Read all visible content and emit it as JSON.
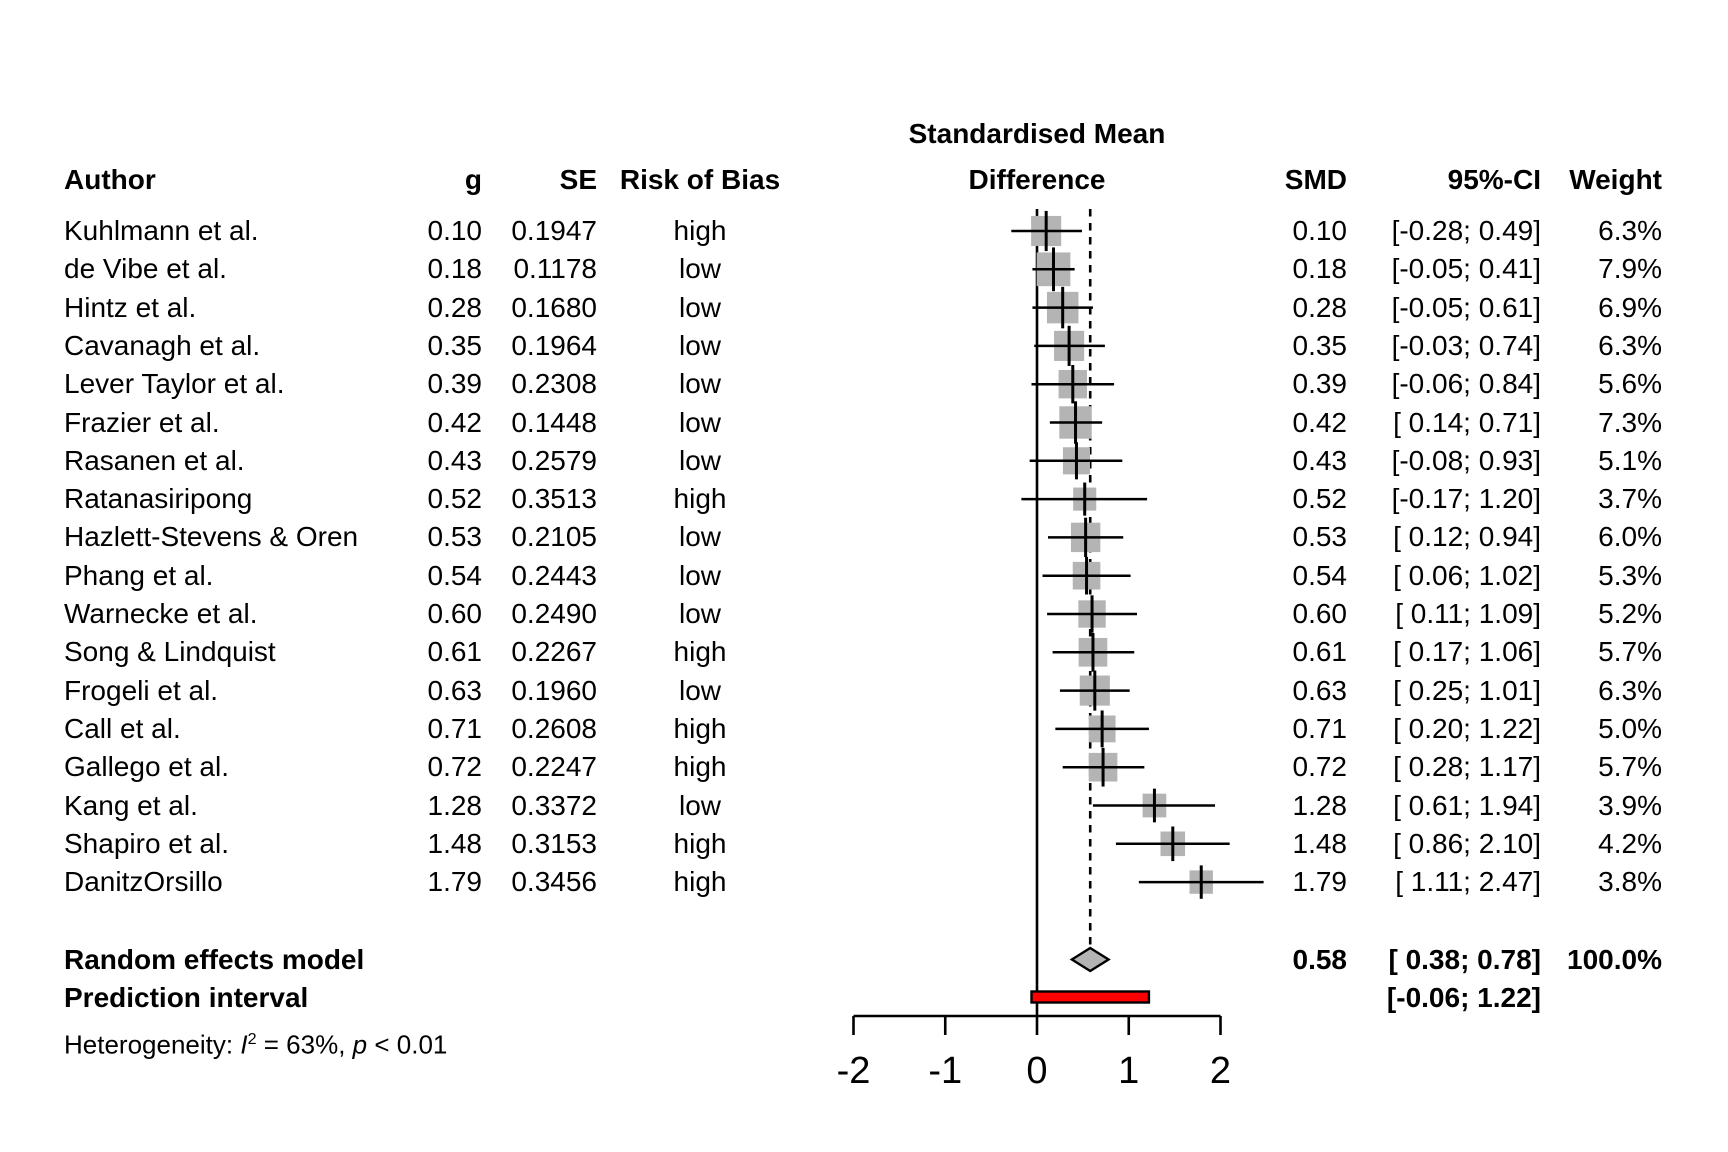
{
  "header": {
    "author": "Author",
    "g": "g",
    "se": "SE",
    "risk_of_bias": "Risk of Bias",
    "plot_title_line1": "Standardised Mean",
    "plot_title_line2": "Difference",
    "smd": "SMD",
    "ci": "95%-CI",
    "weight": "Weight"
  },
  "colors": {
    "square": "#b4b4b4",
    "diamond": "#b4b4b4",
    "prediction_bar": "#fe0000",
    "line": "#000000"
  },
  "chart_data": {
    "type": "forest",
    "x_axis": {
      "min": -2,
      "max": 2,
      "tick_values": [
        -2,
        -1,
        0,
        1,
        2
      ],
      "tick_labels": [
        "-2",
        "-1",
        "0",
        "1",
        "2"
      ]
    },
    "zero_line": 0,
    "pooled_effect_dashed_line": 0.58,
    "studies": [
      {
        "author": "Kuhlmann et al.",
        "g": "0.10",
        "se": "0.1947",
        "rob": "high",
        "smd": 0.1,
        "ci_lo": -0.28,
        "ci_hi": 0.49,
        "ci_text": "[-0.28; 0.49]",
        "weight": 6.3,
        "weight_text": "6.3%"
      },
      {
        "author": "de Vibe et al.",
        "g": "0.18",
        "se": "0.1178",
        "rob": "low",
        "smd": 0.18,
        "ci_lo": -0.05,
        "ci_hi": 0.41,
        "ci_text": "[-0.05; 0.41]",
        "weight": 7.9,
        "weight_text": "7.9%"
      },
      {
        "author": "Hintz et al.",
        "g": "0.28",
        "se": "0.1680",
        "rob": "low",
        "smd": 0.28,
        "ci_lo": -0.05,
        "ci_hi": 0.61,
        "ci_text": "[-0.05; 0.61]",
        "weight": 6.9,
        "weight_text": "6.9%"
      },
      {
        "author": "Cavanagh et al.",
        "g": "0.35",
        "se": "0.1964",
        "rob": "low",
        "smd": 0.35,
        "ci_lo": -0.03,
        "ci_hi": 0.74,
        "ci_text": "[-0.03; 0.74]",
        "weight": 6.3,
        "weight_text": "6.3%"
      },
      {
        "author": "Lever Taylor et al.",
        "g": "0.39",
        "se": "0.2308",
        "rob": "low",
        "smd": 0.39,
        "ci_lo": -0.06,
        "ci_hi": 0.84,
        "ci_text": "[-0.06; 0.84]",
        "weight": 5.6,
        "weight_text": "5.6%"
      },
      {
        "author": "Frazier et al.",
        "g": "0.42",
        "se": "0.1448",
        "rob": "low",
        "smd": 0.42,
        "ci_lo": 0.14,
        "ci_hi": 0.71,
        "ci_text": "[ 0.14; 0.71]",
        "weight": 7.3,
        "weight_text": "7.3%"
      },
      {
        "author": "Rasanen et al.",
        "g": "0.43",
        "se": "0.2579",
        "rob": "low",
        "smd": 0.43,
        "ci_lo": -0.08,
        "ci_hi": 0.93,
        "ci_text": "[-0.08; 0.93]",
        "weight": 5.1,
        "weight_text": "5.1%"
      },
      {
        "author": "Ratanasiripong",
        "g": "0.52",
        "se": "0.3513",
        "rob": "high",
        "smd": 0.52,
        "ci_lo": -0.17,
        "ci_hi": 1.2,
        "ci_text": "[-0.17; 1.20]",
        "weight": 3.7,
        "weight_text": "3.7%"
      },
      {
        "author": "Hazlett-Stevens & Oren",
        "g": "0.53",
        "se": "0.2105",
        "rob": "low",
        "smd": 0.53,
        "ci_lo": 0.12,
        "ci_hi": 0.94,
        "ci_text": "[ 0.12; 0.94]",
        "weight": 6.0,
        "weight_text": "6.0%"
      },
      {
        "author": "Phang et al.",
        "g": "0.54",
        "se": "0.2443",
        "rob": "low",
        "smd": 0.54,
        "ci_lo": 0.06,
        "ci_hi": 1.02,
        "ci_text": "[ 0.06; 1.02]",
        "weight": 5.3,
        "weight_text": "5.3%"
      },
      {
        "author": "Warnecke et al.",
        "g": "0.60",
        "se": "0.2490",
        "rob": "low",
        "smd": 0.6,
        "ci_lo": 0.11,
        "ci_hi": 1.09,
        "ci_text": "[ 0.11; 1.09]",
        "weight": 5.2,
        "weight_text": "5.2%"
      },
      {
        "author": "Song & Lindquist",
        "g": "0.61",
        "se": "0.2267",
        "rob": "high",
        "smd": 0.61,
        "ci_lo": 0.17,
        "ci_hi": 1.06,
        "ci_text": "[ 0.17; 1.06]",
        "weight": 5.7,
        "weight_text": "5.7%"
      },
      {
        "author": "Frogeli et al.",
        "g": "0.63",
        "se": "0.1960",
        "rob": "low",
        "smd": 0.63,
        "ci_lo": 0.25,
        "ci_hi": 1.01,
        "ci_text": "[ 0.25; 1.01]",
        "weight": 6.3,
        "weight_text": "6.3%"
      },
      {
        "author": "Call et al.",
        "g": "0.71",
        "se": "0.2608",
        "rob": "high",
        "smd": 0.71,
        "ci_lo": 0.2,
        "ci_hi": 1.22,
        "ci_text": "[ 0.20; 1.22]",
        "weight": 5.0,
        "weight_text": "5.0%"
      },
      {
        "author": "Gallego et al.",
        "g": "0.72",
        "se": "0.2247",
        "rob": "high",
        "smd": 0.72,
        "ci_lo": 0.28,
        "ci_hi": 1.17,
        "ci_text": "[ 0.28; 1.17]",
        "weight": 5.7,
        "weight_text": "5.7%"
      },
      {
        "author": "Kang et al.",
        "g": "1.28",
        "se": "0.3372",
        "rob": "low",
        "smd": 1.28,
        "ci_lo": 0.61,
        "ci_hi": 1.94,
        "ci_text": "[ 0.61; 1.94]",
        "weight": 3.9,
        "weight_text": "3.9%"
      },
      {
        "author": "Shapiro et al.",
        "g": "1.48",
        "se": "0.3153",
        "rob": "high",
        "smd": 1.48,
        "ci_lo": 0.86,
        "ci_hi": 2.1,
        "ci_text": "[ 0.86; 2.10]",
        "weight": 4.2,
        "weight_text": "4.2%"
      },
      {
        "author": "DanitzOrsillo",
        "g": "1.79",
        "se": "0.3456",
        "rob": "high",
        "smd": 1.79,
        "ci_lo": 1.11,
        "ci_hi": 2.47,
        "ci_text": "[ 1.11; 2.47]",
        "weight": 3.8,
        "weight_text": "3.8%"
      }
    ],
    "summary": {
      "label": "Random effects model",
      "smd_text": "0.58",
      "smd": 0.58,
      "ci_lo": 0.38,
      "ci_hi": 0.78,
      "ci_text": "[ 0.38; 0.78]",
      "weight_text": "100.0%"
    },
    "prediction": {
      "label": "Prediction interval",
      "lo": -0.06,
      "hi": 1.22,
      "ci_text": "[-0.06; 1.22]"
    },
    "heterogeneity": {
      "prefix": "Heterogeneity: ",
      "i_label": "I",
      "sup": "2",
      "mid": " = 63%, ",
      "p_label": "p",
      "tail": " < 0.01"
    }
  }
}
